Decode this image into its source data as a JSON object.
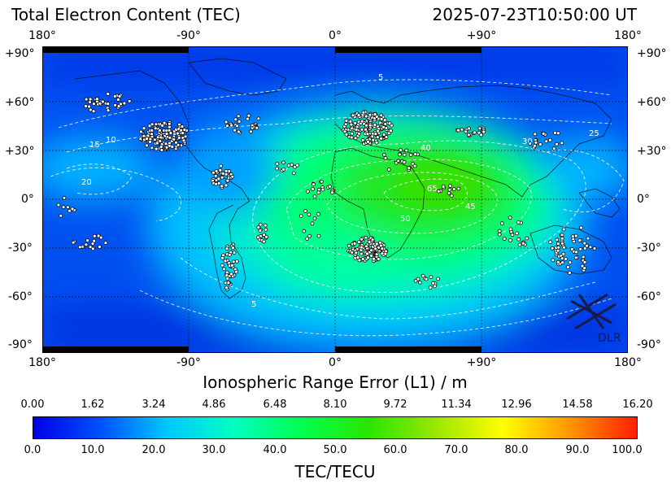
{
  "header": {
    "title": "Total Electron Content (TEC)",
    "timestamp": "2025-07-23T10:50:00 UT"
  },
  "axes": {
    "lon_ticks": [
      "180°",
      "-90°",
      "0°",
      "+90°",
      "180°"
    ],
    "lat_ticks_left": [
      "+90°",
      "+60°",
      "+30°",
      "0°",
      "-30°",
      "-60°",
      "-90°"
    ],
    "lat_ticks_right": [
      "+90°",
      "+60°",
      "+30°",
      "0°",
      "-30°",
      "-60°",
      "-90°"
    ]
  },
  "range_error": {
    "label": "Ionospheric Range Error (L1) / m",
    "ticks": [
      "0.00",
      "1.62",
      "3.24",
      "4.86",
      "6.48",
      "8.10",
      "9.72",
      "11.34",
      "12.96",
      "14.58",
      "16.20"
    ]
  },
  "colorbar": {
    "label": "TEC/TECU",
    "ticks": [
      "0.0",
      "10.0",
      "20.0",
      "30.0",
      "40.0",
      "50.0",
      "60.0",
      "70.0",
      "80.0",
      "90.0",
      "100.0"
    ],
    "range": [
      0,
      100
    ],
    "colors": [
      "#0000e6",
      "#0050ff",
      "#00c8ff",
      "#00ffc0",
      "#00ff50",
      "#28e600",
      "#9be600",
      "#ffff00",
      "#ff9600",
      "#ff1e00"
    ]
  },
  "contour_labels": [
    "5",
    "10",
    "15",
    "20",
    "25",
    "30",
    "40",
    "45",
    "50",
    "65",
    "5"
  ],
  "logo": {
    "text": "DLR"
  },
  "colors": {
    "frame": "#000000",
    "grid": "#000000",
    "contour": "#ffffff",
    "station_fill": "#ffffff",
    "station_stroke": "#000000"
  }
}
